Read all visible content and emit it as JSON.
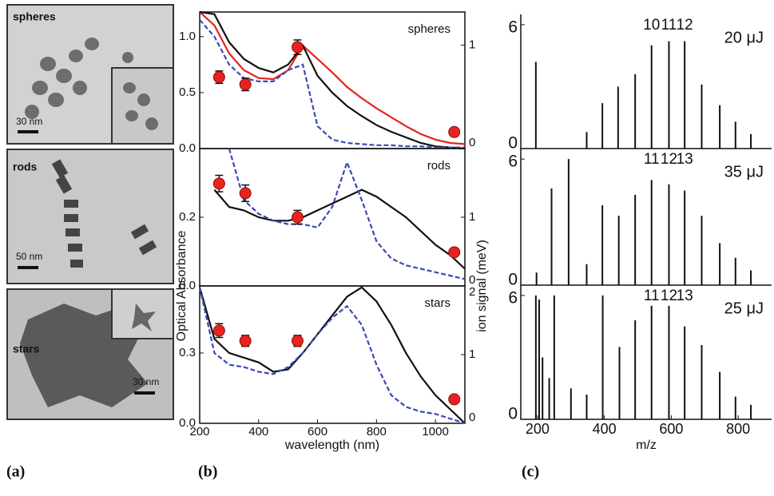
{
  "panel_labels": [
    "(a)",
    "(b)",
    "(c)"
  ],
  "images": [
    {
      "label": "spheres",
      "scale": "30 nm"
    },
    {
      "label": "rods",
      "scale": "50 nm"
    },
    {
      "label": "stars",
      "scale": "30 nm"
    }
  ],
  "chart_data": [
    {
      "type": "line",
      "title": "spheres",
      "x": [
        200,
        250,
        300,
        350,
        400,
        450,
        500,
        550,
        600,
        650,
        700,
        750,
        800,
        850,
        900,
        950,
        1000,
        1050,
        1100
      ],
      "xlim": [
        200,
        1100
      ],
      "ylim": [
        0,
        1.22
      ],
      "yticks": [
        {
          "value": 0,
          "label": "0.0"
        },
        {
          "value": 0.5,
          "label": "0.5"
        },
        {
          "value": 1,
          "label": "1.0"
        }
      ],
      "y2lim": [
        0,
        1.32
      ],
      "y2ticks": [
        0,
        1
      ],
      "series": [
        {
          "color": "#e8231f",
          "values": [
            1.22,
            1.1,
            0.85,
            0.7,
            0.63,
            0.62,
            0.7,
            0.92,
            0.8,
            0.68,
            0.55,
            0.45,
            0.36,
            0.28,
            0.2,
            0.13,
            0.08,
            0.05,
            0.04
          ]
        },
        {
          "color": "#111111",
          "values": [
            1.22,
            1.2,
            0.95,
            0.8,
            0.72,
            0.68,
            0.75,
            0.92,
            0.65,
            0.5,
            0.38,
            0.29,
            0.21,
            0.15,
            0.1,
            0.05,
            0.02,
            0.01,
            0
          ]
        },
        {
          "color": "#3a49b8",
          "dash": true,
          "values": [
            1.15,
            1,
            0.75,
            0.63,
            0.6,
            0.6,
            0.7,
            0.75,
            0.2,
            0.08,
            0.05,
            0.04,
            0.03,
            0.03,
            0.02,
            0.02,
            0.01,
            0.01,
            0.01
          ]
        },
        {
          "type": "scatter",
          "axis": "y2",
          "color": "#e8231f",
          "x": [
            266,
            355,
            532,
            1064
          ],
          "values": [
            0.69,
            0.62,
            0.98,
            0.16
          ],
          "errors": [
            0.06,
            0.06,
            0.07,
            0
          ]
        }
      ]
    },
    {
      "type": "line",
      "title": "rods",
      "x": [
        200,
        250,
        300,
        350,
        400,
        450,
        500,
        550,
        600,
        650,
        700,
        750,
        800,
        850,
        900,
        950,
        1000,
        1050,
        1100
      ],
      "xlim": [
        200,
        1100
      ],
      "ylim": [
        0,
        0.4
      ],
      "yticks": [
        {
          "value": 0,
          "label": "0.0"
        },
        {
          "value": 0.2,
          "label": "0.2"
        }
      ],
      "y2lim": [
        0,
        2
      ],
      "y2ticks": [
        0,
        1
      ],
      "y2label": "ion signal (meV)",
      "ylabel": "Optical Absorbance",
      "series": [
        {
          "color": "#111111",
          "values": [
            null,
            0.28,
            0.23,
            0.22,
            0.2,
            0.19,
            0.19,
            0.2,
            0.22,
            0.24,
            0.26,
            0.28,
            0.26,
            0.23,
            0.2,
            0.16,
            0.12,
            0.09,
            0.05
          ]
        },
        {
          "color": "#3a49b8",
          "dash": true,
          "values": [
            null,
            null,
            0.4,
            0.25,
            0.21,
            0.19,
            0.18,
            0.18,
            0.17,
            0.23,
            0.36,
            0.25,
            0.13,
            0.08,
            0.06,
            0.05,
            0.04,
            0.03,
            0.02
          ]
        },
        {
          "type": "scatter",
          "axis": "y2",
          "color": "#e8231f",
          "x": [
            266,
            355,
            532,
            1064
          ],
          "values": [
            1.49,
            1.35,
            1,
            0.49
          ],
          "errors": [
            0.12,
            0.12,
            0.1,
            0
          ]
        }
      ]
    },
    {
      "type": "line",
      "title": "stars",
      "x": [
        200,
        250,
        300,
        350,
        400,
        450,
        500,
        550,
        600,
        650,
        700,
        750,
        800,
        850,
        900,
        950,
        1000,
        1050,
        1100
      ],
      "xlim": [
        200,
        1100
      ],
      "ylim": [
        0,
        0.586
      ],
      "yticks": [
        {
          "value": 0,
          "label": "0.0"
        },
        {
          "value": 0.3,
          "label": "0.3"
        }
      ],
      "y2lim": [
        0,
        2
      ],
      "y2ticks": [
        0,
        1,
        2
      ],
      "xticks": [
        200,
        400,
        600,
        800,
        1000
      ],
      "xlabel": "wavelength (nm)",
      "series": [
        {
          "color": "#111111",
          "values": [
            0.58,
            0.36,
            0.3,
            0.28,
            0.26,
            0.22,
            0.23,
            0.3,
            0.38,
            0.46,
            0.54,
            0.58,
            0.52,
            0.42,
            0.3,
            0.2,
            0.12,
            0.06,
            0
          ]
        },
        {
          "color": "#3a49b8",
          "dash": true,
          "values": [
            0.58,
            0.3,
            0.25,
            0.24,
            0.22,
            0.21,
            0.24,
            0.3,
            0.38,
            0.45,
            0.5,
            0.42,
            0.25,
            0.12,
            0.07,
            0.05,
            0.04,
            0.02,
            0
          ]
        },
        {
          "type": "scatter",
          "axis": "y2",
          "color": "#e8231f",
          "x": [
            266,
            355,
            532,
            1064
          ],
          "values": [
            1.35,
            1.2,
            1.2,
            0.35
          ],
          "errors": [
            0.1,
            0.08,
            0.08,
            0
          ]
        }
      ]
    },
    {
      "type": "stem",
      "title": "20 μJ",
      "color": "#111111",
      "xlim": [
        150,
        900
      ],
      "ylim": [
        0,
        6.5
      ],
      "yticks": [
        0,
        6
      ],
      "x": [
        195,
        347,
        394,
        441,
        492,
        541,
        593,
        640,
        691,
        745,
        792,
        838
      ],
      "values": [
        4.2,
        0.8,
        2.2,
        3,
        3.6,
        5,
        5.2,
        5.2,
        3.1,
        2.1,
        1.3,
        0.7
      ],
      "annotations": [
        {
          "text": "10",
          "x": 541
        },
        {
          "text": "11",
          "x": 593
        },
        {
          "text": "12",
          "x": 640
        }
      ]
    },
    {
      "type": "stem",
      "title": "35 μJ",
      "color": "#111111",
      "xlim": [
        150,
        900
      ],
      "ylim": [
        0,
        6.5
      ],
      "yticks": [
        0,
        6
      ],
      "x": [
        197,
        242,
        293,
        347,
        394,
        443,
        492,
        541,
        593,
        640,
        691,
        745,
        792,
        838
      ],
      "values": [
        0.6,
        4.6,
        6,
        1,
        3.8,
        3.3,
        4.3,
        5,
        4.8,
        4.5,
        3.3,
        2,
        1.3,
        0.7
      ],
      "annotations": [
        {
          "text": "11",
          "x": 541
        },
        {
          "text": "12",
          "x": 593
        },
        {
          "text": "13",
          "x": 640
        }
      ]
    },
    {
      "type": "stem",
      "title": "25 μJ",
      "color": "#111111",
      "xlim": [
        150,
        900
      ],
      "ylim": [
        0,
        6.5
      ],
      "yticks": [
        0,
        6
      ],
      "xticks": [
        200,
        400,
        600,
        800
      ],
      "xlabel": "m/z",
      "x": [
        195,
        205,
        215,
        235,
        250,
        300,
        347,
        395,
        445,
        492,
        541,
        593,
        640,
        691,
        745,
        792,
        838
      ],
      "values": [
        6,
        5.8,
        3,
        2,
        6,
        1.5,
        1.2,
        6,
        3.5,
        4.8,
        5.5,
        5.5,
        4.5,
        3.6,
        2.3,
        1.1,
        0.7
      ],
      "annotations": [
        {
          "text": "11",
          "x": 541
        },
        {
          "text": "12",
          "x": 593
        },
        {
          "text": "13",
          "x": 640
        }
      ]
    }
  ]
}
